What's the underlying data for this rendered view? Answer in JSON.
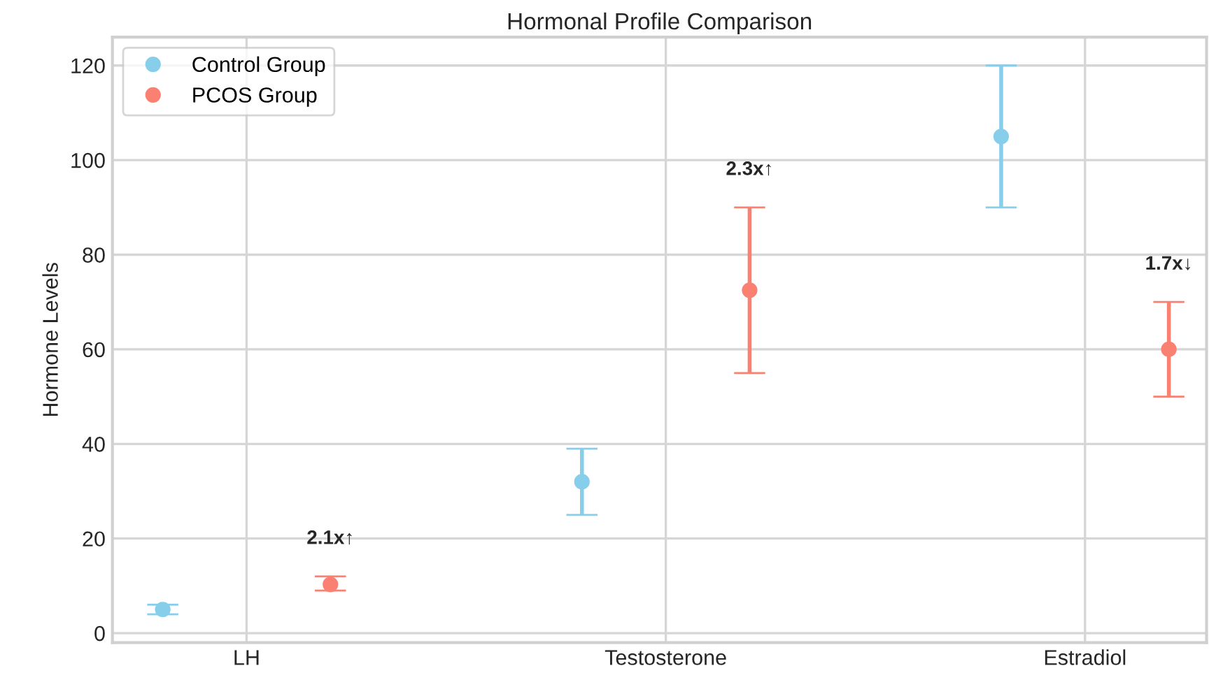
{
  "chart_data": {
    "type": "scatter",
    "title": "Hormonal Profile Comparison",
    "ylabel": "Hormone Levels",
    "categories": [
      "LH",
      "Testosterone",
      "Estradiol"
    ],
    "series": [
      {
        "name": "Control Group",
        "color": "#87ceeb",
        "values": [
          5,
          32,
          105
        ],
        "errors": [
          [
            4,
            6
          ],
          [
            25,
            39
          ],
          [
            90,
            120
          ]
        ]
      },
      {
        "name": "PCOS Group",
        "color": "#fa8072",
        "values": [
          10.3,
          72.5,
          60
        ],
        "errors": [
          [
            9,
            12
          ],
          [
            55,
            90
          ],
          [
            50,
            70
          ]
        ]
      }
    ],
    "annotations": [
      "2.1x↑",
      "2.3x↑",
      "1.7x↓"
    ],
    "ylim": [
      -2,
      126
    ],
    "yticks": [
      0,
      20,
      40,
      60,
      80,
      100,
      120
    ],
    "grid": true,
    "legend": "top left",
    "marker": "circle"
  }
}
